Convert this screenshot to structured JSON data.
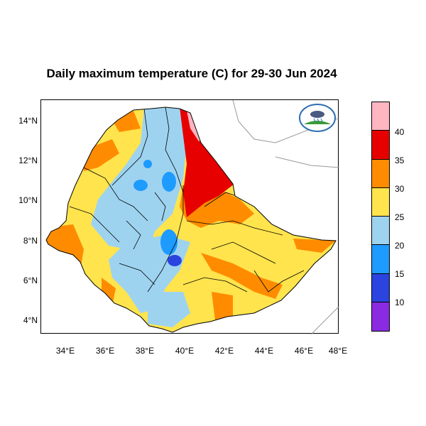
{
  "title": "Daily maximum temperature (C) for 29-30 Jun 2024",
  "y_axis": {
    "ticks": [
      "14°N",
      "12°N",
      "10°N",
      "8°N",
      "6°N",
      "4°N"
    ]
  },
  "x_axis": {
    "ticks": [
      "34°E",
      "36°E",
      "38°E",
      "40°E",
      "42°E",
      "44°E",
      "46°E",
      "48°E"
    ]
  },
  "colorbar": {
    "labels": [
      "40",
      "35",
      "30",
      "25",
      "20",
      "15",
      "10"
    ],
    "colors": [
      "#ffb6c1",
      "#e60000",
      "#ff8c00",
      "#ffe44d",
      "#9ed3f0",
      "#1e9bff",
      "#2b44e0",
      "#8a2be2"
    ]
  },
  "map": {
    "region": "Ethiopia",
    "lon_range": [
      33,
      48
    ],
    "lat_range": [
      3.2,
      15
    ],
    "colors": {
      "hot_extreme": "#ffb6c1",
      "very_hot": "#e60000",
      "hot": "#ff8c00",
      "warm": "#ffe44d",
      "mild": "#9ed3f0",
      "cool": "#1e9bff",
      "cold": "#2b44e0"
    }
  },
  "logo": {
    "icon": "meteorology-institute-logo"
  }
}
